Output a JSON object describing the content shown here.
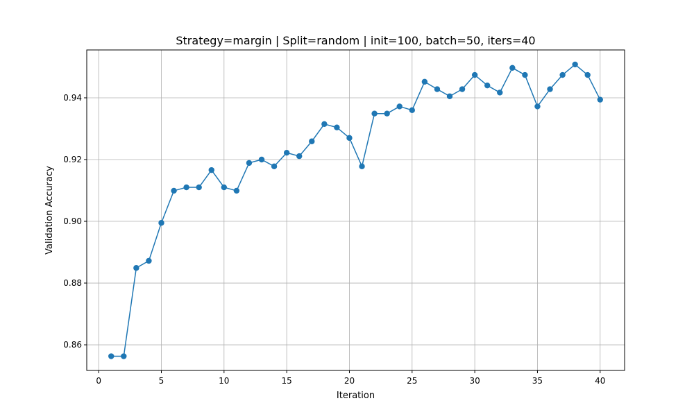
{
  "chart_data": {
    "type": "line",
    "title": "Strategy=margin | Split=random | init=100, batch=50, iters=40",
    "xlabel": "Iteration",
    "ylabel": "Validation Accuracy",
    "xlim": [
      -0.95,
      41.95
    ],
    "ylim": [
      0.8517,
      0.9555
    ],
    "x_ticks": [
      0,
      5,
      10,
      15,
      20,
      25,
      30,
      35,
      40
    ],
    "x_tick_labels": [
      "0",
      "5",
      "10",
      "15",
      "20",
      "25",
      "30",
      "35",
      "40"
    ],
    "y_ticks": [
      0.86,
      0.88,
      0.9,
      0.92,
      0.94
    ],
    "y_tick_labels": [
      "0.86",
      "0.88",
      "0.90",
      "0.92",
      "0.94"
    ],
    "grid": true,
    "series": [
      {
        "color": "#1f77b4",
        "marker": "circle",
        "x": [
          1,
          2,
          3,
          4,
          5,
          6,
          7,
          8,
          9,
          10,
          11,
          12,
          13,
          14,
          15,
          16,
          17,
          18,
          19,
          20,
          21,
          22,
          23,
          24,
          25,
          26,
          27,
          28,
          29,
          30,
          31,
          32,
          33,
          34,
          35,
          36,
          37,
          38,
          39,
          40
        ],
        "y": [
          0.8563,
          0.8563,
          0.8849,
          0.8872,
          0.8995,
          0.9099,
          0.911,
          0.911,
          0.9166,
          0.911,
          0.9099,
          0.9189,
          0.92,
          0.9178,
          0.9222,
          0.9211,
          0.9259,
          0.9315,
          0.9304,
          0.927,
          0.9178,
          0.9349,
          0.9349,
          0.9372,
          0.936,
          0.9452,
          0.9428,
          0.9405,
          0.9428,
          0.9474,
          0.944,
          0.9417,
          0.9497,
          0.9474,
          0.9372,
          0.9428,
          0.9474,
          0.9508,
          0.9474,
          0.9394
        ]
      }
    ]
  }
}
